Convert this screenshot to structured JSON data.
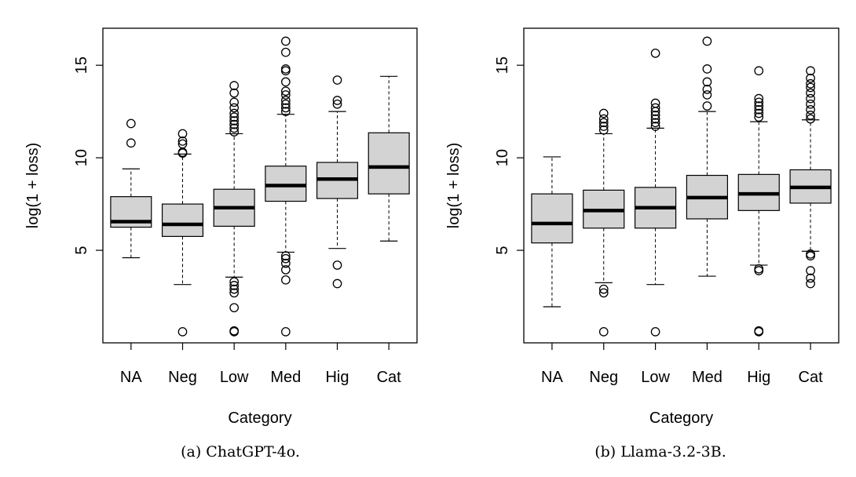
{
  "chart_data": [
    {
      "type": "box",
      "caption": "(a) ChatGPT-4o.",
      "xlabel": "Category",
      "ylabel": "log(1 + loss)",
      "ylim": [
        0.0,
        17.0
      ],
      "yticks": [
        5,
        10,
        15
      ],
      "categories": [
        "NA",
        "Neg",
        "Low",
        "Med",
        "Hig",
        "Cat"
      ],
      "boxes": [
        {
          "category": "NA",
          "whisker_low": 4.6,
          "q1": 6.25,
          "median": 6.55,
          "q3": 7.9,
          "whisker_high": 9.4,
          "outliers": [
            10.8,
            11.85
          ]
        },
        {
          "category": "Neg",
          "whisker_low": 3.15,
          "q1": 5.75,
          "median": 6.4,
          "q3": 7.5,
          "whisker_high": 10.2,
          "outliers": [
            0.6,
            10.25,
            10.3,
            10.75,
            10.9,
            11.3
          ]
        },
        {
          "category": "Low",
          "whisker_low": 3.55,
          "q1": 6.3,
          "median": 7.3,
          "q3": 8.3,
          "whisker_high": 11.3,
          "outliers": [
            0.6,
            0.65,
            1.9,
            2.7,
            2.9,
            3.1,
            3.3,
            11.4,
            11.6,
            11.8,
            12.0,
            12.2,
            12.4,
            12.7,
            13.0,
            13.5,
            13.9
          ]
        },
        {
          "category": "Med",
          "whisker_low": 4.9,
          "q1": 7.65,
          "median": 8.5,
          "q3": 9.55,
          "whisker_high": 12.35,
          "outliers": [
            0.6,
            3.4,
            3.95,
            4.3,
            4.55,
            4.7,
            12.5,
            12.7,
            12.9,
            13.1,
            13.4,
            13.6,
            14.1,
            14.7,
            14.8,
            15.7,
            16.3
          ]
        },
        {
          "category": "Hig",
          "whisker_low": 5.1,
          "q1": 7.8,
          "median": 8.85,
          "q3": 9.75,
          "whisker_high": 12.5,
          "outliers": [
            3.2,
            4.2,
            12.9,
            13.1,
            14.2
          ]
        },
        {
          "category": "Cat",
          "whisker_low": 5.5,
          "q1": 8.05,
          "median": 9.5,
          "q3": 11.35,
          "whisker_high": 14.4,
          "outliers": []
        }
      ]
    },
    {
      "type": "box",
      "caption": "(b) Llama-3.2-3B.",
      "xlabel": "Category",
      "ylabel": "log(1 + loss)",
      "ylim": [
        0.0,
        17.0
      ],
      "yticks": [
        5,
        10,
        15
      ],
      "categories": [
        "NA",
        "Neg",
        "Low",
        "Med",
        "Hig",
        "Cat"
      ],
      "boxes": [
        {
          "category": "NA",
          "whisker_low": 1.95,
          "q1": 5.4,
          "median": 6.45,
          "q3": 8.05,
          "whisker_high": 10.05,
          "outliers": []
        },
        {
          "category": "Neg",
          "whisker_low": 3.25,
          "q1": 6.2,
          "median": 7.15,
          "q3": 8.25,
          "whisker_high": 11.3,
          "outliers": [
            0.6,
            2.7,
            2.9,
            11.5,
            11.7,
            11.9,
            12.1,
            12.4
          ]
        },
        {
          "category": "Low",
          "whisker_low": 3.15,
          "q1": 6.2,
          "median": 7.3,
          "q3": 8.4,
          "whisker_high": 11.6,
          "outliers": [
            0.6,
            11.7,
            11.9,
            12.1,
            12.3,
            12.5,
            12.7,
            12.95,
            15.65
          ]
        },
        {
          "category": "Med",
          "whisker_low": 3.6,
          "q1": 6.7,
          "median": 7.85,
          "q3": 9.05,
          "whisker_high": 12.5,
          "outliers": [
            12.8,
            13.4,
            13.7,
            14.1,
            14.8,
            16.3
          ]
        },
        {
          "category": "Hig",
          "whisker_low": 4.2,
          "q1": 7.15,
          "median": 8.05,
          "q3": 9.1,
          "whisker_high": 11.95,
          "outliers": [
            0.6,
            0.65,
            3.9,
            4.0,
            12.2,
            12.4,
            12.6,
            12.8,
            13.0,
            13.2,
            14.7
          ]
        },
        {
          "category": "Cat",
          "whisker_low": 4.95,
          "q1": 7.55,
          "median": 8.4,
          "q3": 9.35,
          "whisker_high": 12.05,
          "outliers": [
            3.2,
            3.5,
            3.9,
            4.7,
            4.8,
            12.1,
            12.3,
            12.6,
            12.9,
            13.2,
            13.5,
            13.8,
            14.0,
            14.3,
            14.7
          ]
        }
      ]
    }
  ]
}
